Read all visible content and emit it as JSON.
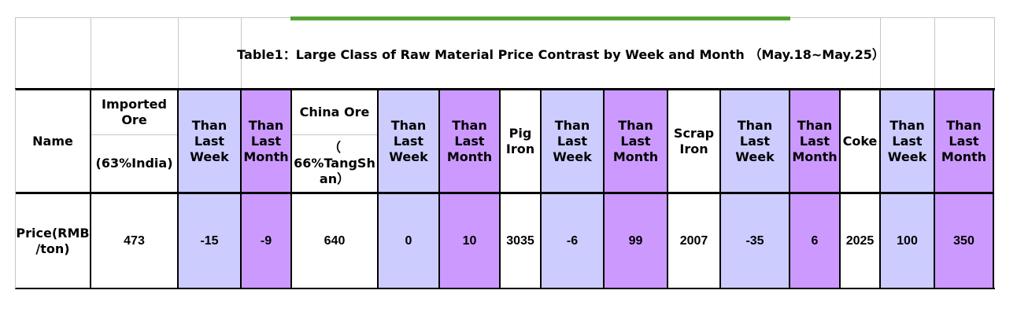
{
  "chart_data": {
    "type": "table",
    "title": "Table1：Large Class of Raw Material Price Contrast by Week and Month （May.18~May.25）",
    "period": "May.18~May.25",
    "corner_header": "Name",
    "row_label": "Price(RMB\n/ton)",
    "row_unit": "RMB/ton",
    "columns": [
      {
        "header": "Imported Ore",
        "subheader": "(63%India)",
        "value": 473,
        "bg": "white"
      },
      {
        "header": "Than Last Week",
        "value": -15,
        "bg": "lavender"
      },
      {
        "header": "Than Last Month",
        "value": -9,
        "bg": "purple"
      },
      {
        "header": "China Ore",
        "subheader": "（\n66%TangSh\nan）",
        "value": 640,
        "bg": "white"
      },
      {
        "header": "Than Last Week",
        "value": 0,
        "bg": "lavender"
      },
      {
        "header": "Than Last Month",
        "value": 10,
        "bg": "purple"
      },
      {
        "header": "Pig Iron",
        "value": 3035,
        "bg": "white"
      },
      {
        "header": "Than Last Week",
        "value": -6,
        "bg": "lavender"
      },
      {
        "header": "Than Last Month",
        "value": 99,
        "bg": "purple"
      },
      {
        "header": "Scrap Iron",
        "value": 2007,
        "bg": "white"
      },
      {
        "header": "Than Last Week",
        "value": -35,
        "bg": "lavender"
      },
      {
        "header": "Than Last Month",
        "value": 6,
        "bg": "purple"
      },
      {
        "header": "Coke",
        "value": 2025,
        "bg": "white"
      },
      {
        "header": "Than Last Week",
        "value": 100,
        "bg": "lavender"
      },
      {
        "header": "Than Last Month",
        "value": 350,
        "bg": "purple"
      }
    ],
    "palette": {
      "than_last_week_bg": "#ccccff",
      "than_last_month_bg": "#cc99ff",
      "accent_bar": "#55a331",
      "gridline": "#c6c6c6",
      "rule": "#000000"
    },
    "layout_hints": {
      "grid": "on",
      "legend": "none"
    }
  }
}
